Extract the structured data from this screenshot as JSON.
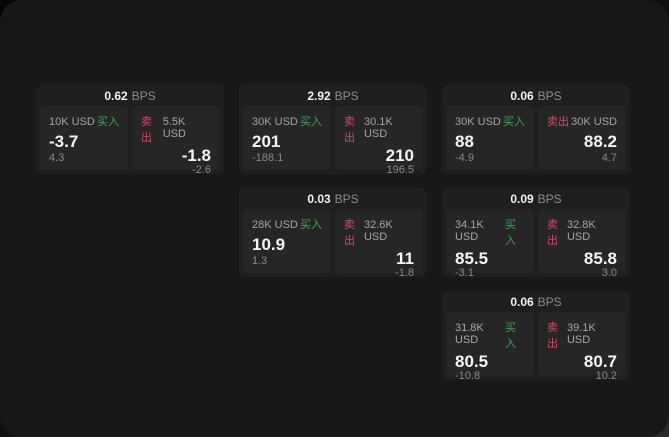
{
  "labels": {
    "bps_unit": "BPS",
    "buy": "买入",
    "sell": "卖出"
  },
  "colors": {
    "buy": "#3fa65b",
    "sell": "#d44a66",
    "app_background": "#181818",
    "card_background": "#1f1f1f",
    "panel_background": "#262626"
  },
  "cards": [
    {
      "row": 1,
      "col": 1,
      "bps": "0.62",
      "unit": "BPS",
      "buy": {
        "notional": "10K USD",
        "side_label": "买入",
        "price": "-3.7",
        "delta": "4.3"
      },
      "sell": {
        "notional": "5.5K USD",
        "side_label": "卖出",
        "price": "-1.8",
        "delta": "-2.6"
      }
    },
    {
      "row": 1,
      "col": 2,
      "bps": "2.92",
      "unit": "BPS",
      "buy": {
        "notional": "30K USD",
        "side_label": "买入",
        "price": "201",
        "delta": "-188.1"
      },
      "sell": {
        "notional": "30.1K USD",
        "side_label": "卖出",
        "price": "210",
        "delta": "196.5"
      }
    },
    {
      "row": 1,
      "col": 3,
      "bps": "0.06",
      "unit": "BPS",
      "buy": {
        "notional": "30K USD",
        "side_label": "买入",
        "price": "88",
        "delta": "-4.9"
      },
      "sell": {
        "notional": "30K USD",
        "side_label": "卖出",
        "price": "88.2",
        "delta": "4.7"
      }
    },
    {
      "row": 2,
      "col": 2,
      "bps": "0.03",
      "unit": "BPS",
      "buy": {
        "notional": "28K USD",
        "side_label": "买入",
        "price": "10.9",
        "delta": "1.3"
      },
      "sell": {
        "notional": "32.6K USD",
        "side_label": "卖出",
        "price": "11",
        "delta": "-1.8"
      }
    },
    {
      "row": 2,
      "col": 3,
      "bps": "0.09",
      "unit": "BPS",
      "buy": {
        "notional": "34.1K USD",
        "side_label": "买入",
        "price": "85.5",
        "delta": "-3.1"
      },
      "sell": {
        "notional": "32.8K USD",
        "side_label": "卖出",
        "price": "85.8",
        "delta": "3.0"
      }
    },
    {
      "row": 3,
      "col": 3,
      "bps": "0.06",
      "unit": "BPS",
      "buy": {
        "notional": "31.8K USD",
        "side_label": "买入",
        "price": "80.5",
        "delta": "-10.8"
      },
      "sell": {
        "notional": "39.1K USD",
        "side_label": "卖出",
        "price": "80.7",
        "delta": "10.2"
      }
    }
  ]
}
